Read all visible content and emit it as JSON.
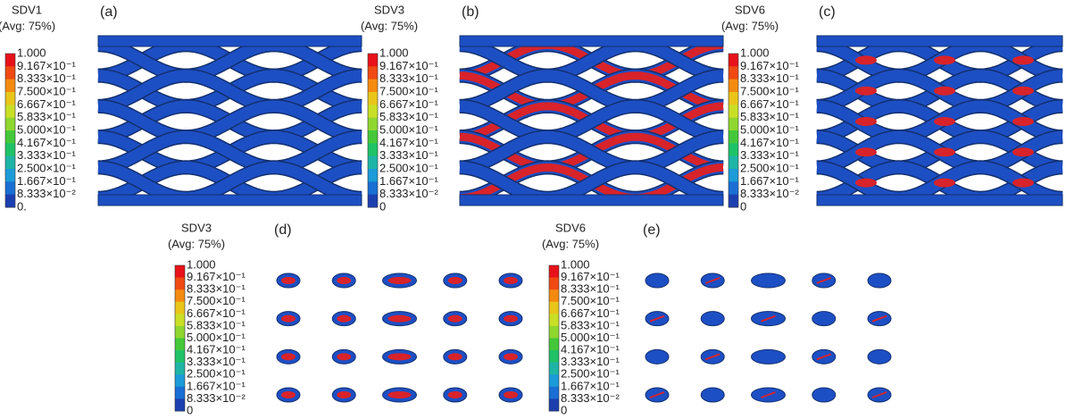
{
  "panels": [
    {
      "label": "(a)",
      "variable": "SDV1",
      "averaging": "(Avg: 75%)",
      "legend_labels": [
        "1.000",
        "9.167×10⁻¹",
        "8.333×10⁻¹",
        "7.500×10⁻¹",
        "6.667×10⁻¹",
        "5.833×10⁻¹",
        "5.000×10⁻¹",
        "4.167×10⁻¹",
        "3.333×10⁻¹",
        "2.500×10⁻¹",
        "1.667×10⁻¹",
        "8.333×10⁻²",
        "0."
      ]
    },
    {
      "label": "(b)",
      "variable": "SDV3",
      "averaging": "(Avg: 75%)",
      "legend_labels": [
        "1.000",
        "9.167×10⁻¹",
        "8.333×10⁻¹",
        "7.500×10⁻¹",
        "6.667×10⁻¹",
        "5.833×10⁻¹",
        "5.000×10⁻¹",
        "4.167×10⁻¹",
        "3.333×10⁻¹",
        "2.500×10⁻¹",
        "1.667×10⁻¹",
        "8.333×10⁻²",
        "0"
      ]
    },
    {
      "label": "(c)",
      "variable": "SDV6",
      "averaging": "(Avg: 75%)",
      "legend_labels": [
        "1.000",
        "9.167×10⁻¹",
        "8.333×10⁻¹",
        "7.500×10⁻¹",
        "6.667×10⁻¹",
        "5.833×10⁻¹",
        "5.000×10⁻¹",
        "4.167×10⁻¹",
        "3.333×10⁻¹",
        "2.500×10⁻¹",
        "1.667×10⁻¹",
        "8.333×10⁻²",
        "0"
      ]
    },
    {
      "label": "(d)",
      "variable": "SDV3",
      "averaging": "(Avg: 75%)",
      "legend_labels": [
        "1.000",
        "9.167×10⁻¹",
        "8.333×10⁻¹",
        "7.500×10⁻¹",
        "6.667×10⁻¹",
        "5.833×10⁻¹",
        "5.000×10⁻¹",
        "4.167×10⁻¹",
        "3.333×10⁻¹",
        "2.500×10⁻¹",
        "1.667×10⁻¹",
        "8.333×10⁻²",
        "0"
      ]
    },
    {
      "label": "(e)",
      "variable": "SDV6",
      "averaging": "(Avg: 75%)",
      "legend_labels": [
        "1.000",
        "9.167×10⁻¹",
        "8.333×10⁻¹",
        "7.500×10⁻¹",
        "6.667×10⁻¹",
        "5.833×10⁻¹",
        "5.000×10⁻¹",
        "4.167×10⁻¹",
        "3.333×10⁻¹",
        "2.500×10⁻¹",
        "1.667×10⁻¹",
        "8.333×10⁻²",
        "0"
      ]
    }
  ],
  "legend_colors": [
    "#e8121a",
    "#f04a12",
    "#f58a10",
    "#e9c51a",
    "#c9df25",
    "#8fd72f",
    "#44c83a",
    "#1fc267",
    "#1eb5a6",
    "#1b9cd8",
    "#1a6fd4",
    "#1c3fb0"
  ]
}
